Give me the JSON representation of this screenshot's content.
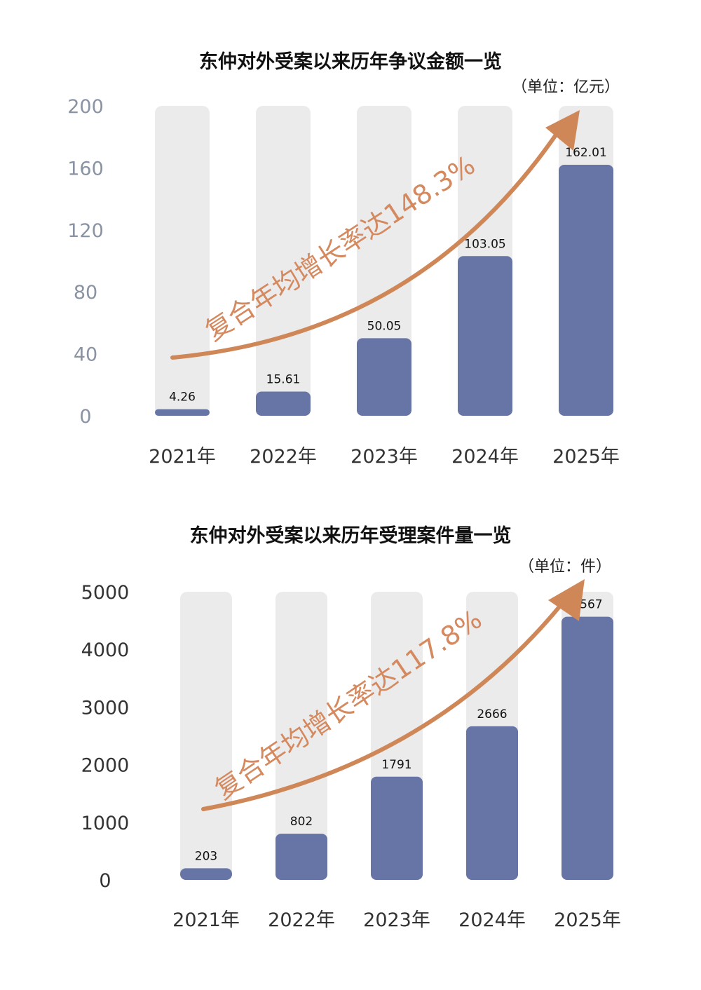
{
  "chart_data": [
    {
      "type": "bar",
      "title": "东仲对外受案以来历年争议金额一览",
      "unit": "（单位：亿元）",
      "categories": [
        "2021年",
        "2022年",
        "2023年",
        "2024年",
        "2025年"
      ],
      "values": [
        4.26,
        15.61,
        50.05,
        103.05,
        162.01
      ],
      "value_labels": [
        "4.26",
        "15.61",
        "50.05",
        "103.05",
        "162.01"
      ],
      "ylim": [
        0,
        200
      ],
      "yticks": [
        0,
        40,
        80,
        120,
        160,
        200
      ],
      "annotation": "复合年均增长率达148.3%",
      "grid": false,
      "legend": "none",
      "colors": {
        "bar": "#6674a6",
        "track": "#ebebeb",
        "arrow": "#cf8758"
      }
    },
    {
      "type": "bar",
      "title": "东仲对外受案以来历年受理案件量一览",
      "unit": "（单位：件）",
      "categories": [
        "2021年",
        "2022年",
        "2023年",
        "2024年",
        "2025年"
      ],
      "values": [
        203,
        802,
        1791,
        2666,
        4567
      ],
      "value_labels": [
        "203",
        "802",
        "1791",
        "2666",
        "4567"
      ],
      "ylim": [
        0,
        5000
      ],
      "yticks": [
        0,
        1000,
        2000,
        3000,
        4000,
        5000
      ],
      "annotation": "复合年均增长率达117.8%",
      "grid": false,
      "legend": "none",
      "colors": {
        "bar": "#6674a6",
        "track": "#ebebeb",
        "arrow": "#cf8758"
      }
    }
  ]
}
